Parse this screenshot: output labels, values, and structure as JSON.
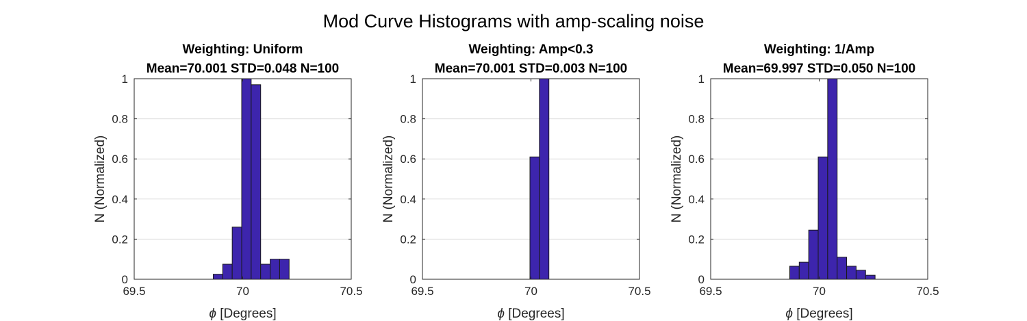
{
  "figure_title": "Mod Curve Histograms with amp-scaling noise",
  "colors": {
    "bar_fill": "#3d25ad",
    "bar_edge": "#1a1a1a",
    "grid": "#dcdcdc",
    "axes": "#262626"
  },
  "chart_data": [
    {
      "type": "bar",
      "title_line1": "Weighting: Uniform",
      "title_line2": "Mean=70.001 STD=0.048 N=100",
      "xlabel_symbol": "ϕ",
      "xlabel": "[Degrees]",
      "ylabel": "N (Normalized)",
      "xlim": [
        69.5,
        70.5
      ],
      "ylim": [
        0,
        1
      ],
      "xticks": [
        69.5,
        70,
        70.5
      ],
      "xtick_labels": [
        "69.5",
        "70",
        "70.5"
      ],
      "yticks": [
        0,
        0.2,
        0.4,
        0.6,
        0.8,
        1
      ],
      "ytick_labels": [
        "0",
        "0.2",
        "0.4",
        "0.6",
        "0.8",
        "1"
      ],
      "grid": "y",
      "bin_width": 0.0437,
      "bin_start": 69.602,
      "values": [
        0,
        0,
        0,
        0,
        0,
        0,
        0.025,
        0.075,
        0.26,
        1.0,
        0.97,
        0.075,
        0.1,
        0.1,
        0,
        0,
        0,
        0,
        0,
        0
      ]
    },
    {
      "type": "bar",
      "title_line1": "Weighting: Amp<0.3",
      "title_line2": "Mean=70.001 STD=0.003 N=100",
      "xlabel_symbol": "ϕ",
      "xlabel": "[Degrees]",
      "ylabel": "N (Normalized)",
      "xlim": [
        69.5,
        70.5
      ],
      "ylim": [
        0,
        1
      ],
      "xticks": [
        69.5,
        70,
        70.5
      ],
      "xtick_labels": [
        "69.5",
        "70",
        "70.5"
      ],
      "yticks": [
        0,
        0.2,
        0.4,
        0.6,
        0.8,
        1
      ],
      "ytick_labels": [
        "0",
        "0.2",
        "0.4",
        "0.6",
        "0.8",
        "1"
      ],
      "grid": "y",
      "bin_width": 0.0437,
      "bin_start": 69.602,
      "values": [
        0,
        0,
        0,
        0,
        0,
        0,
        0,
        0,
        0,
        0.61,
        1.0,
        0,
        0,
        0,
        0,
        0,
        0,
        0,
        0,
        0
      ]
    },
    {
      "type": "bar",
      "title_line1": "Weighting: 1/Amp",
      "title_line2": "Mean=69.997 STD=0.050 N=100",
      "xlabel_symbol": "ϕ",
      "xlabel": "[Degrees]",
      "ylabel": "N (Normalized)",
      "xlim": [
        69.5,
        70.5
      ],
      "ylim": [
        0,
        1
      ],
      "xticks": [
        69.5,
        70,
        70.5
      ],
      "xtick_labels": [
        "69.5",
        "70",
        "70.5"
      ],
      "yticks": [
        0,
        0.2,
        0.4,
        0.6,
        0.8,
        1
      ],
      "ytick_labels": [
        "0",
        "0.2",
        "0.4",
        "0.6",
        "0.8",
        "1"
      ],
      "grid": "y",
      "bin_width": 0.0437,
      "bin_start": 69.602,
      "values": [
        0,
        0,
        0,
        0,
        0,
        0,
        0.065,
        0.085,
        0.245,
        0.61,
        1.0,
        0.11,
        0.065,
        0.045,
        0.02,
        0,
        0,
        0,
        0,
        0
      ]
    }
  ]
}
